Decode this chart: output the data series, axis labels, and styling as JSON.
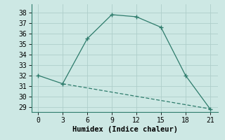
{
  "line1_x": [
    0,
    3,
    6,
    9,
    12,
    15,
    18,
    21
  ],
  "line1_y": [
    32,
    31.2,
    35.5,
    37.8,
    37.6,
    36.6,
    32,
    28.8
  ],
  "line2_x": [
    3,
    21
  ],
  "line2_y": [
    31.2,
    28.8
  ],
  "line_color": "#2d7b6b",
  "bg_color": "#cde8e4",
  "grid_color": "#aececa",
  "xlabel": "Humidex (Indice chaleur)",
  "xlim": [
    -0.8,
    22
  ],
  "ylim": [
    28.5,
    38.8
  ],
  "xticks": [
    0,
    3,
    6,
    9,
    12,
    15,
    18,
    21
  ],
  "yticks": [
    29,
    30,
    31,
    32,
    33,
    34,
    35,
    36,
    37,
    38
  ],
  "xlabel_fontsize": 7.5,
  "tick_fontsize": 7
}
